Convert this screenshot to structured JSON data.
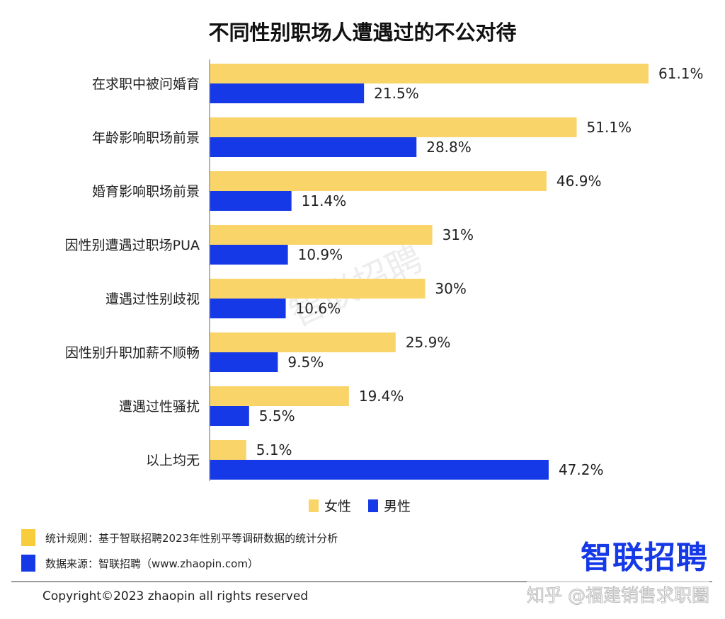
{
  "chart_data": {
    "type": "bar",
    "orientation": "horizontal",
    "title": "不同性别职场人遭遇过的不公对待",
    "categories": [
      "在求职中被问婚育",
      "年龄影响职场前景",
      "婚育影响职场前景",
      "因性别遭遇过职场PUA",
      "遭遇过性别歧视",
      "因性别升职加薪不顺畅",
      "遭遇过性骚扰",
      "以上均无"
    ],
    "series": [
      {
        "name": "女性",
        "color": "#F9D468",
        "values": [
          61.1,
          51.1,
          46.9,
          31,
          30,
          25.9,
          19.4,
          5.1
        ],
        "labels": [
          "61.1%",
          "51.1%",
          "46.9%",
          "31%",
          "30%",
          "25.9%",
          "19.4%",
          "5.1%"
        ]
      },
      {
        "name": "男性",
        "color": "#1539E6",
        "values": [
          21.5,
          28.8,
          11.4,
          10.9,
          10.6,
          9.5,
          5.5,
          47.2
        ],
        "labels": [
          "21.5%",
          "28.8%",
          "11.4%",
          "10.9%",
          "10.6%",
          "9.5%",
          "5.5%",
          "47.2%"
        ]
      }
    ],
    "xlim": [
      0,
      61.1
    ],
    "grid": false,
    "legend_position": "bottom",
    "watermark": "智联招聘"
  },
  "footer": {
    "rule": "统计规则：基于智联招聘2023年性别平等调研数据的统计分析",
    "source": "数据来源：智联招聘（www.zhaopin.com）",
    "logo": "智联招聘",
    "copyright": "Copyright©2023 zhaopin all rights reserved",
    "zhihu_watermark": "知乎 @福建销售求职圈"
  }
}
